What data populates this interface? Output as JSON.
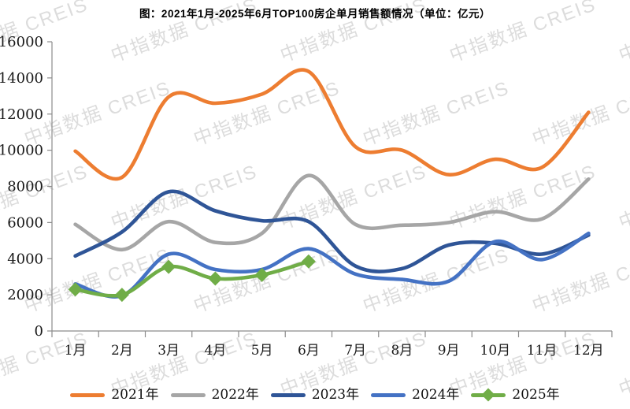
{
  "title": "图：2021年1月-2025年6月TOP100房企单月销售额情况（单位：亿元）",
  "watermark": {
    "text": "中指数据 CREIS"
  },
  "chart_data": {
    "type": "line",
    "title": "图：2021年1月-2025年6月TOP100房企单月销售额情况（单位：亿元）",
    "categories": [
      "1月",
      "2月",
      "3月",
      "4月",
      "5月",
      "6月",
      "7月",
      "8月",
      "9月",
      "10月",
      "11月",
      "12月"
    ],
    "series": [
      {
        "name": "2021年",
        "color": "#ED7D31",
        "marker": "none",
        "values": [
          9950,
          8500,
          12950,
          12600,
          13100,
          14350,
          10200,
          10000,
          8650,
          9500,
          9050,
          12100
        ]
      },
      {
        "name": "2022年",
        "color": "#A6A6A6",
        "marker": "none",
        "values": [
          5900,
          4500,
          6050,
          4900,
          5400,
          8600,
          5900,
          5850,
          6000,
          6600,
          6200,
          8400
        ]
      },
      {
        "name": "2023年",
        "color": "#2F5597",
        "marker": "none",
        "values": [
          4150,
          5480,
          7700,
          6650,
          6100,
          6050,
          3600,
          3450,
          4750,
          4850,
          4250,
          5300
        ]
      },
      {
        "name": "2024年",
        "color": "#4472C4",
        "marker": "none",
        "values": [
          2600,
          1950,
          4250,
          3400,
          3400,
          4550,
          3150,
          2850,
          2750,
          4950,
          3950,
          5400
        ]
      },
      {
        "name": "2025年",
        "color": "#70AD47",
        "marker": "diamond",
        "values": [
          2300,
          2000,
          3550,
          2900,
          3100,
          3850
        ]
      }
    ],
    "xlabel": "",
    "ylabel": "",
    "ylim": [
      0,
      16000
    ],
    "ytick_step": 2000,
    "ytick_labels": [
      "0",
      "2000",
      "4000",
      "6000",
      "8000",
      "10000",
      "12000",
      "14000",
      "16000"
    ],
    "grid": false,
    "smooth": true,
    "legend_position": "bottom",
    "axis_color": "#8C8C8C",
    "label_color": "#1a1a1a"
  }
}
